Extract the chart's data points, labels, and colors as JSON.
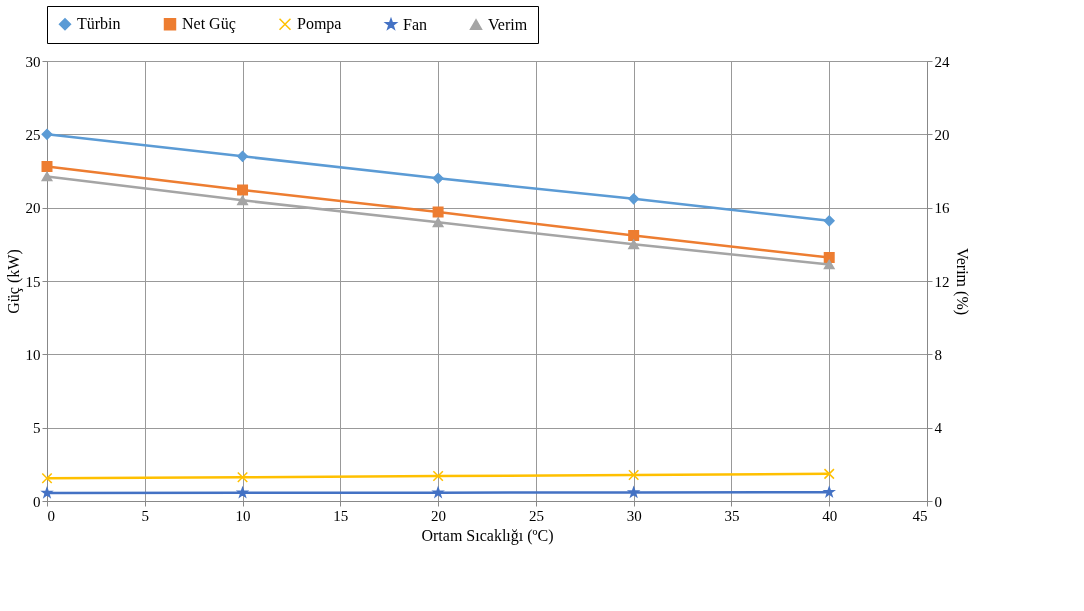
{
  "chart_data": {
    "type": "line",
    "xlabel": "Ortam Sıcaklığı (ºC)",
    "ylabel": "Güç (kW)",
    "y2label": "Verim (%)",
    "x": [
      0,
      10,
      20,
      30,
      40
    ],
    "xlim": [
      0,
      45
    ],
    "xticks": [
      0,
      5,
      10,
      15,
      20,
      25,
      30,
      35,
      40,
      45
    ],
    "ylim": [
      0,
      30
    ],
    "yticks": [
      0,
      5,
      10,
      15,
      20,
      25,
      30
    ],
    "y2lim": [
      0,
      24
    ],
    "y2ticks": [
      0,
      4,
      8,
      12,
      16,
      20,
      24
    ],
    "grid": true,
    "legend": "top",
    "line_style": "solid",
    "series": [
      {
        "name": "Türbin",
        "color": "#5b9bd5",
        "marker": "diamond",
        "values": [
          25.0,
          23.5,
          22.0,
          20.6,
          19.1
        ]
      },
      {
        "name": "Net Güç",
        "color": "#ed7d31",
        "marker": "square",
        "values": [
          22.8,
          21.2,
          19.7,
          18.1,
          16.6
        ]
      },
      {
        "name": "Pompa",
        "color": "#ffc000",
        "marker": "cross",
        "values": [
          1.55,
          1.62,
          1.7,
          1.77,
          1.85
        ]
      },
      {
        "name": "Fan",
        "color": "#4472c4",
        "marker": "star",
        "values": [
          0.55,
          0.56,
          0.57,
          0.58,
          0.6
        ]
      },
      {
        "name": "Verim",
        "color": "#a5a5a5",
        "marker": "triangle",
        "axis": "y2",
        "values": [
          17.7,
          16.4,
          15.2,
          14.0,
          12.9
        ]
      }
    ]
  }
}
